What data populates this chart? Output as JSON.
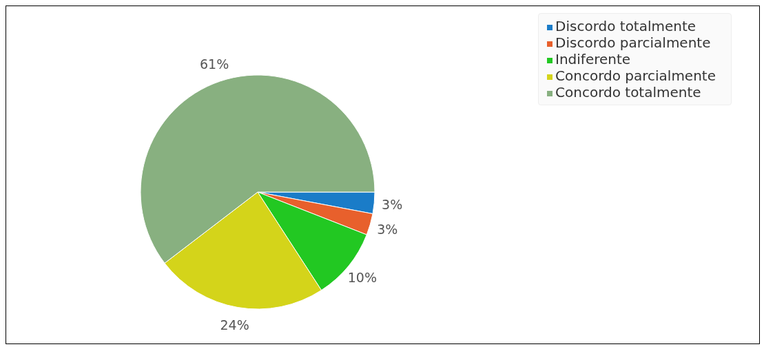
{
  "chart_data": {
    "type": "pie",
    "categories": [
      "Discordo totalmente",
      "Discordo parcialmente",
      "Indiferente",
      "Concordo parcialmente",
      "Concordo totalmente"
    ],
    "values": [
      3,
      3,
      10,
      24,
      61
    ],
    "value_labels": [
      "3%",
      "3%",
      "10%",
      "24%",
      "61%"
    ],
    "colors": [
      "#1a7cc8",
      "#e8602c",
      "#22c822",
      "#d4d41a",
      "#88b080"
    ],
    "legend": "top right"
  }
}
